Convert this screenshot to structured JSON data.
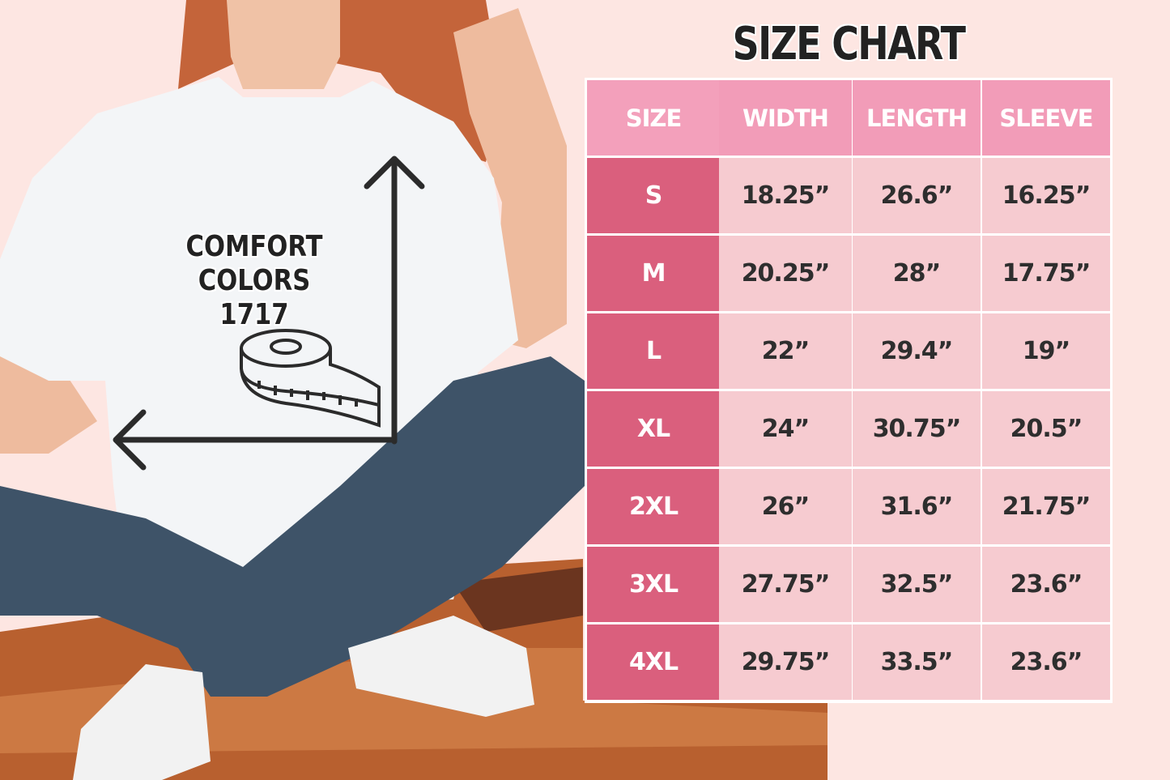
{
  "title": "SIZE CHART",
  "brand": {
    "line1": "COMFORT COLORS",
    "line2": "1717"
  },
  "colors": {
    "background": "#fde6e2",
    "header": "#f29cb8",
    "size_cell": "#da5f7d",
    "value_cell": "#f6cbd0",
    "text": "#2e2e2e"
  },
  "icons": [
    "tape-measure-icon",
    "arrow-up-icon",
    "arrow-left-icon"
  ],
  "table": {
    "headers": [
      "SIZE",
      "WIDTH",
      "LENGTH",
      "SLEEVE"
    ],
    "rows": [
      [
        "S",
        "18.25”",
        "26.6”",
        "16.25”"
      ],
      [
        "M",
        "20.25”",
        "28”",
        "17.75”"
      ],
      [
        "L",
        "22”",
        "29.4”",
        "19”"
      ],
      [
        "XL",
        "24”",
        "30.75”",
        "20.5”"
      ],
      [
        "2XL",
        "26”",
        "31.6”",
        "21.75”"
      ],
      [
        "3XL",
        "27.75”",
        "32.5”",
        "23.6”"
      ],
      [
        "4XL",
        "29.75”",
        "33.5”",
        "23.6”"
      ]
    ]
  }
}
